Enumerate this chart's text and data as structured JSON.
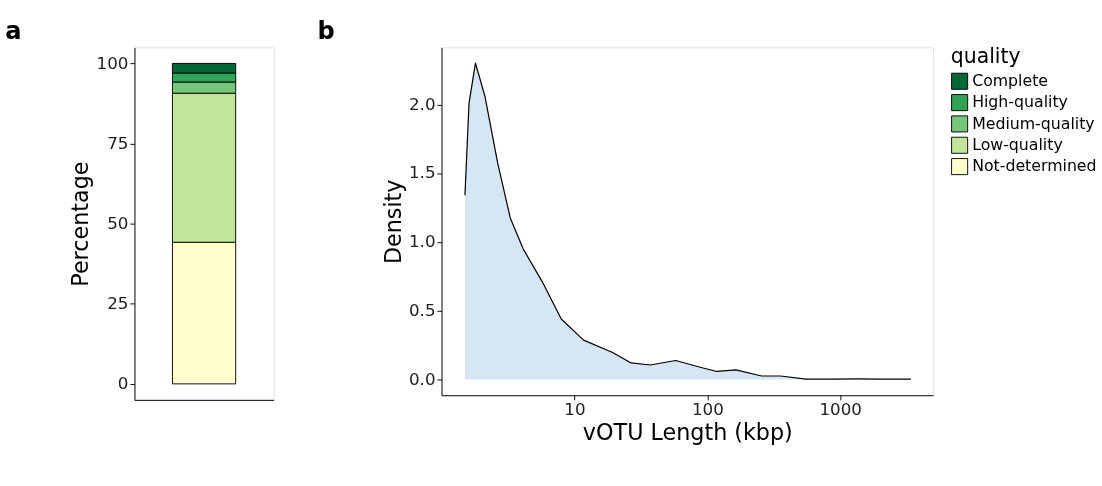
{
  "chart_data": [
    {
      "type": "bar",
      "title": "a",
      "ylabel": "Percentage",
      "legend_title": "quality",
      "categories": [
        null
      ],
      "stacked": true,
      "legend": "right",
      "tick_labels": "y",
      "grid": false,
      "ylim": [
        -5,
        105
      ],
      "yticks": [
        0,
        25,
        50,
        75,
        100
      ],
      "series": [
        {
          "name": "Not-determined",
          "color": "#ffffcc",
          "values": [
            44.2
          ]
        },
        {
          "name": "Low-quality",
          "color": "#c2e699",
          "values": [
            46.5
          ]
        },
        {
          "name": "Medium-quality",
          "color": "#78c679",
          "values": [
            3.5
          ]
        },
        {
          "name": "High-quality",
          "color": "#31a354",
          "values": [
            2.8
          ]
        },
        {
          "name": "Complete",
          "color": "#006837",
          "values": [
            3.0
          ]
        }
      ]
    },
    {
      "type": "area",
      "title": "b",
      "xlabel": "vOTU Length (kbp)",
      "ylabel": "Density",
      "log": "x",
      "grid": false,
      "xlim": [
        1,
        5000
      ],
      "xticks": [
        10,
        100,
        1000
      ],
      "ylim": [
        -0.115,
        2.415
      ],
      "yticks": [
        {
          "value": 0,
          "label": "0.0"
        },
        {
          "value": 0.5,
          "label": "0.5"
        },
        {
          "value": 1,
          "label": "1.0"
        },
        {
          "value": 1.5,
          "label": "1.5"
        },
        {
          "value": 2,
          "label": "2.0"
        }
      ],
      "series": [
        {
          "color": "#d6e6f4",
          "x": [
            1.5,
            1.61,
            1.8,
            2.12,
            2.65,
            3.3,
            4.11,
            5.73,
            7.96,
            11.7,
            19.2,
            26.7,
            37.2,
            57.8,
            89.8,
            118,
            164,
            256,
            356,
            552,
            857,
            1334,
            1960,
            3400
          ],
          "values": [
            1.34,
            2.01,
            2.3,
            2.06,
            1.57,
            1.17,
            0.95,
            0.71,
            0.44,
            0.286,
            0.198,
            0.12,
            0.105,
            0.138,
            0.087,
            0.058,
            0.069,
            0.025,
            0.025,
            0.003,
            0.003,
            0.004,
            0.002,
            0.002
          ]
        }
      ]
    }
  ]
}
